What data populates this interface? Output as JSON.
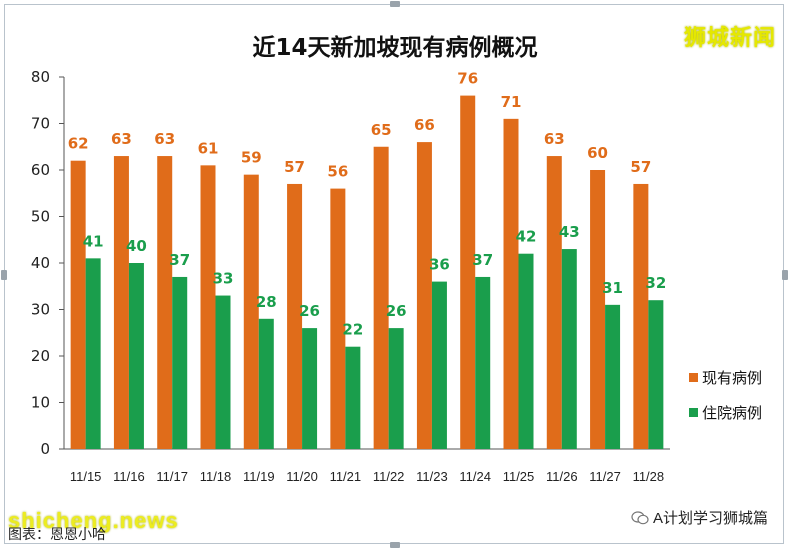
{
  "chart_data": {
    "type": "bar",
    "title": "近14天新加坡现有病例概况",
    "categories": [
      "11/15",
      "11/16",
      "11/17",
      "11/18",
      "11/19",
      "11/20",
      "11/21",
      "11/22",
      "11/23",
      "11/24",
      "11/25",
      "11/26",
      "11/27",
      "11/28"
    ],
    "series": [
      {
        "name": "现有病例",
        "color": "#e06c1a",
        "values": [
          62,
          63,
          63,
          61,
          59,
          57,
          56,
          65,
          66,
          76,
          71,
          63,
          60,
          57
        ]
      },
      {
        "name": "住院病例",
        "color": "#1a9e4c",
        "values": [
          41,
          40,
          37,
          33,
          28,
          26,
          22,
          26,
          36,
          37,
          42,
          43,
          31,
          32
        ]
      }
    ],
    "ylim": [
      0,
      80
    ],
    "yticks": [
      0,
      10,
      20,
      30,
      40,
      50,
      60,
      70,
      80
    ],
    "grid": false,
    "legend": "right"
  },
  "watermark_top": "狮城新闻",
  "watermark_bottom": "shicheng.news",
  "footer_source": "图表：恩恩小哈",
  "footer_account": "A计划学习狮城篇",
  "footer_icon": "wechat-icon"
}
